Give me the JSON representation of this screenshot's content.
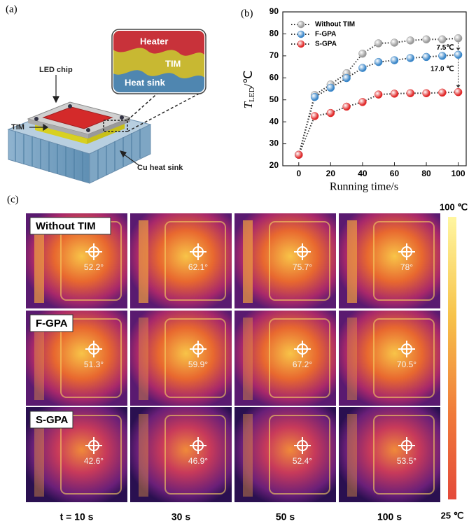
{
  "figure": {
    "panel_labels": [
      "(a)",
      "(b)",
      "(c)"
    ]
  },
  "diagram": {
    "labels": {
      "heater": "Heater",
      "tim_inset": "TIM",
      "heat_sink_inset": "Heat sink",
      "led_chip": "LED chip",
      "tim": "TIM",
      "cu_heat_sink": "Cu heat sink"
    }
  },
  "chart_data": {
    "type": "line",
    "y_label": "T",
    "y_label_sub": "LED",
    "y_label_unit": "/℃",
    "x_label": "Running time/s",
    "x": [
      0,
      10,
      20,
      30,
      40,
      50,
      60,
      70,
      80,
      90,
      100
    ],
    "series": [
      {
        "name": "Without TIM",
        "color": "#9a9a9a",
        "values": [
          25,
          52.2,
          57,
          62.1,
          71,
          75.7,
          76,
          77,
          77.5,
          77.5,
          78
        ]
      },
      {
        "name": "F-GPA",
        "color": "#3a86c8",
        "values": [
          25,
          51.3,
          55.5,
          59.9,
          64.5,
          67.2,
          68,
          69,
          69.5,
          70,
          70.5
        ]
      },
      {
        "name": "S-GPA",
        "color": "#e02a2a",
        "values": [
          25,
          42.6,
          44,
          46.9,
          49,
          52.4,
          52.8,
          53,
          53,
          53.3,
          53.5
        ]
      }
    ],
    "annotations": [
      "7.5℃",
      "17.0 ℃"
    ],
    "xlim": [
      -10,
      105
    ],
    "xticks": [
      0,
      20,
      40,
      60,
      80,
      100
    ],
    "ylim": [
      20,
      90
    ],
    "yticks": [
      20,
      30,
      40,
      50,
      60,
      70,
      80,
      90
    ],
    "legend": "upper left"
  },
  "thermal": {
    "rows": [
      {
        "label": "Without TIM",
        "temps": [
          "52.2°",
          "62.1°",
          "75.7°",
          "78°"
        ]
      },
      {
        "label": "F-GPA",
        "temps": [
          "51.3°",
          "59.9°",
          "67.2°",
          "70.5°"
        ]
      },
      {
        "label": "S-GPA",
        "temps": [
          "42.6°",
          "46.9°",
          "52.4°",
          "53.5°"
        ]
      }
    ],
    "times": [
      "t = 10 s",
      "30 s",
      "50 s",
      "100 s"
    ],
    "scale_max": "100 ℃",
    "scale_min": "25 ℃"
  }
}
